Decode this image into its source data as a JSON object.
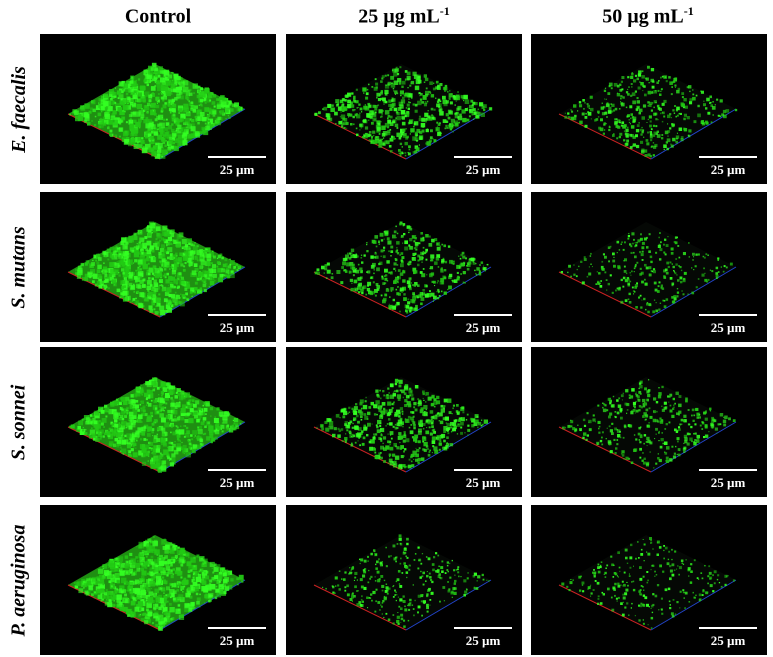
{
  "columns": [
    {
      "label": "Control",
      "sup": ""
    },
    {
      "label": "25 µg mL",
      "sup": "-1"
    },
    {
      "label": "50 µg mL",
      "sup": "-1"
    }
  ],
  "rows": [
    {
      "label": "E. faecalis"
    },
    {
      "label": "S. mutans"
    },
    {
      "label": "S. sonnei"
    },
    {
      "label": "P. aeruginosa"
    }
  ],
  "scale_bar_label": "25 µm",
  "colors": {
    "fluorescence": "#33ff22",
    "background": "#000000",
    "axis_red": "#cc2222",
    "axis_blue": "#2244cc"
  },
  "panels": [
    [
      {
        "coverage": 0.92
      },
      {
        "coverage": 0.6
      },
      {
        "coverage": 0.35
      }
    ],
    [
      {
        "coverage": 0.85
      },
      {
        "coverage": 0.45
      },
      {
        "coverage": 0.18
      }
    ],
    [
      {
        "coverage": 0.82
      },
      {
        "coverage": 0.55
      },
      {
        "coverage": 0.3
      }
    ],
    [
      {
        "coverage": 0.88
      },
      {
        "coverage": 0.22
      },
      {
        "coverage": 0.15
      }
    ]
  ]
}
